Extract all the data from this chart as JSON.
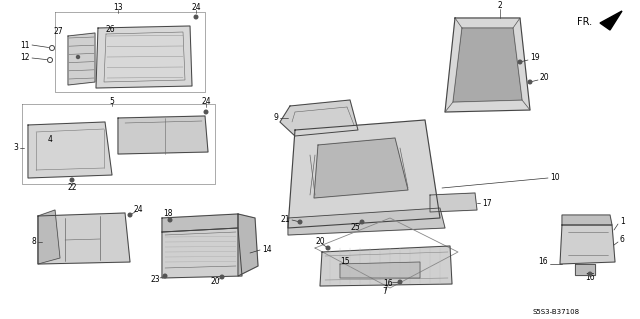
{
  "bg_color": "#ffffff",
  "diagram_code": "S5S3-B37108",
  "fr_label": "FR.",
  "line_color": "#444444",
  "lw": 0.7,
  "label_fs": 5.5
}
